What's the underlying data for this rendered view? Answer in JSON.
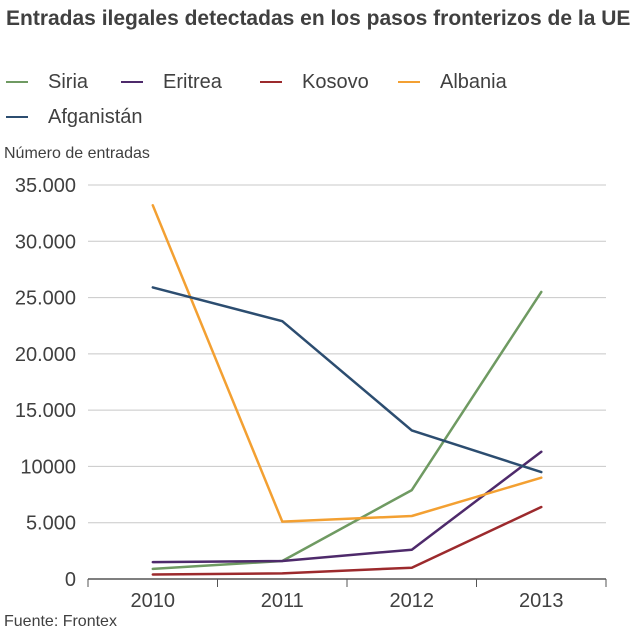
{
  "chart_data": {
    "type": "line",
    "title": "Entradas ilegales detectadas en los pasos fronterizos de la UE",
    "ylabel": "Número de entradas",
    "xlabel": "",
    "categories": [
      "2010",
      "2011",
      "2012",
      "2013"
    ],
    "y_tick_labels": [
      "0",
      "5.000",
      "10000",
      "15.000",
      "20.000",
      "25.000",
      "30.000",
      "35.000"
    ],
    "y_tick_values": [
      0,
      5000,
      10000,
      15000,
      20000,
      25000,
      30000,
      35000
    ],
    "ylim": [
      0,
      35000
    ],
    "grid": true,
    "legend_position": "top",
    "series": [
      {
        "name": "Siria",
        "color": "#6f9a62",
        "values": [
          900,
          1600,
          7900,
          25500
        ]
      },
      {
        "name": "Eritrea",
        "color": "#4e2a6b",
        "values": [
          1500,
          1600,
          2600,
          11300
        ]
      },
      {
        "name": "Kosovo",
        "color": "#9c2a2d",
        "values": [
          400,
          500,
          1000,
          6400
        ]
      },
      {
        "name": "Albania",
        "color": "#f3a032",
        "values": [
          33200,
          5100,
          5600,
          9000
        ]
      },
      {
        "name": "Afganistán",
        "color": "#2c4d70",
        "values": [
          25900,
          22900,
          13200,
          9500
        ]
      }
    ],
    "source": "Fuente: Frontex"
  }
}
